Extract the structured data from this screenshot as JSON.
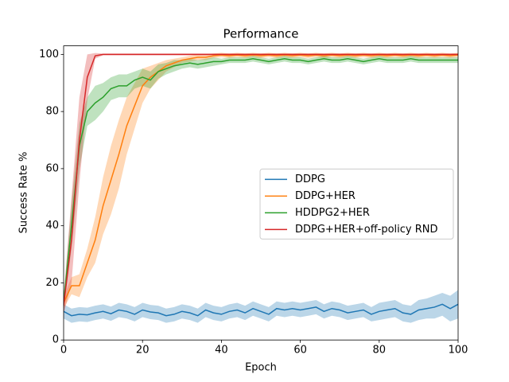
{
  "chart_data": {
    "type": "line",
    "title": "Performance",
    "x_label": "Epoch",
    "y_label": "Success Rate %",
    "x": [
      0,
      2,
      4,
      6,
      8,
      10,
      12,
      14,
      16,
      18,
      20,
      22,
      24,
      26,
      28,
      30,
      32,
      34,
      36,
      38,
      40,
      42,
      44,
      46,
      48,
      50,
      52,
      54,
      56,
      58,
      60,
      62,
      64,
      66,
      68,
      70,
      72,
      74,
      76,
      78,
      80,
      82,
      84,
      86,
      88,
      90,
      92,
      94,
      96,
      98,
      100
    ],
    "xlim": [
      0,
      100
    ],
    "xticks": [
      0,
      20,
      40,
      60,
      80,
      100
    ],
    "ylim": [
      0,
      103
    ],
    "yticks": [
      0,
      20,
      40,
      60,
      80,
      100
    ],
    "legend": "center right",
    "series": [
      {
        "name": "DDPG",
        "color": "#1f77b4",
        "values": [
          10,
          8.5,
          9,
          8.8,
          9.5,
          10,
          9.2,
          10.5,
          10,
          9,
          10.5,
          9.8,
          9.5,
          8.5,
          9,
          10,
          9.5,
          8.5,
          10.5,
          9.5,
          9,
          10,
          10.5,
          9.5,
          11,
          10,
          9,
          11,
          10.5,
          11,
          10.5,
          11,
          11.5,
          10,
          11,
          10.5,
          9.5,
          10,
          10.5,
          9,
          10,
          10.5,
          11,
          9.5,
          9,
          10.5,
          11,
          11.5,
          12.5,
          11,
          12.5
        ],
        "errors": [
          2.5,
          2.5,
          2.5,
          2.5,
          2.5,
          2.5,
          2.5,
          2.5,
          2.5,
          2.5,
          2.5,
          2.5,
          2.5,
          2.5,
          2.5,
          2.5,
          2.5,
          2.5,
          2.5,
          2.5,
          2.5,
          2.5,
          2.5,
          2.5,
          2.5,
          2.5,
          2.5,
          2.5,
          2.5,
          2.5,
          2.5,
          2.5,
          2.5,
          2.5,
          2.5,
          2.5,
          2.5,
          2.5,
          2.5,
          2.5,
          3,
          3,
          3,
          3,
          3,
          3.5,
          3.5,
          4,
          4,
          4.5,
          5
        ]
      },
      {
        "name": "DDPG+HER",
        "color": "#ff7f0e",
        "values": [
          13,
          19,
          19,
          27,
          35,
          47,
          56,
          65,
          75,
          82,
          89,
          92,
          94,
          96,
          97,
          98,
          98.5,
          99,
          99,
          99.5,
          99.8,
          99.5,
          99.8,
          99.5,
          99.8,
          99.5,
          99.8,
          99.5,
          99.8,
          99.5,
          99.8,
          99.5,
          99.8,
          99.5,
          99.8,
          99.5,
          99.8,
          99.5,
          99.8,
          99.5,
          99.8,
          99.5,
          99.8,
          99.5,
          99.8,
          99.5,
          99.8,
          99.5,
          99.8,
          99.5,
          99.8
        ],
        "errors": [
          2,
          3,
          4,
          5,
          8,
          10,
          12,
          12,
          10,
          8,
          6,
          4,
          3,
          2,
          1.5,
          1,
          1,
          1,
          1,
          0.8,
          0.8,
          0.8,
          0.8,
          0.8,
          0.8,
          0.8,
          0.8,
          0.8,
          0.8,
          0.8,
          0.8,
          0.8,
          0.8,
          0.8,
          0.8,
          0.8,
          0.8,
          0.8,
          0.8,
          0.8,
          0.8,
          0.8,
          0.8,
          0.8,
          0.8,
          0.8,
          0.8,
          0.8,
          0.8,
          0.8,
          0.8
        ]
      },
      {
        "name": "HDDPG2+HER",
        "color": "#2ca02c",
        "values": [
          13,
          40,
          68,
          80,
          83,
          85,
          88,
          89,
          89,
          91,
          92,
          91,
          94,
          95,
          96,
          96.5,
          97,
          96.5,
          97,
          97.5,
          97.5,
          98,
          98,
          98,
          98.5,
          98,
          97.5,
          98,
          98.5,
          98,
          98,
          97.5,
          98,
          98.5,
          98,
          98,
          98.5,
          98,
          97.5,
          98,
          98.5,
          98,
          98,
          98,
          98.5,
          98,
          98,
          98,
          98,
          98,
          98
        ],
        "errors": [
          2,
          8,
          8,
          5,
          6,
          5,
          4,
          4,
          4,
          3,
          3,
          3,
          2.5,
          2,
          2,
          1.5,
          1.5,
          1.5,
          1.5,
          1.5,
          1,
          1,
          1,
          1,
          1,
          1,
          1,
          1,
          1,
          1,
          1,
          1,
          1,
          1,
          1,
          1,
          1,
          1,
          1,
          1,
          1,
          1,
          1,
          1,
          1,
          1,
          1,
          1,
          1,
          1,
          1
        ]
      },
      {
        "name": "DDPG+HER+off-policy RND",
        "color": "#d62728",
        "values": [
          12,
          35,
          70,
          92,
          99.5,
          100,
          100,
          100,
          100,
          100,
          100,
          100,
          100,
          100,
          100,
          100,
          100,
          100,
          100,
          100,
          100,
          100,
          100,
          100,
          100,
          100,
          100,
          100,
          100,
          100,
          100,
          100,
          100,
          100,
          100,
          100,
          100,
          100,
          100,
          100,
          100,
          100,
          100,
          100,
          100,
          100,
          100,
          100,
          100,
          100,
          100
        ],
        "errors": [
          3,
          15,
          15,
          8,
          1,
          0.3,
          0.3,
          0.3,
          0.3,
          0.3,
          0.3,
          0.3,
          0.3,
          0.3,
          0.3,
          0.3,
          0.3,
          0.3,
          0.3,
          0.3,
          0.3,
          0.3,
          0.3,
          0.3,
          0.3,
          0.3,
          0.3,
          0.3,
          0.3,
          0.3,
          0.3,
          0.3,
          0.3,
          0.3,
          0.3,
          0.3,
          0.3,
          0.3,
          0.3,
          0.3,
          0.3,
          0.3,
          0.3,
          0.3,
          0.3,
          0.3,
          0.3,
          0.3,
          0.3,
          0.3,
          0.3
        ]
      }
    ]
  }
}
